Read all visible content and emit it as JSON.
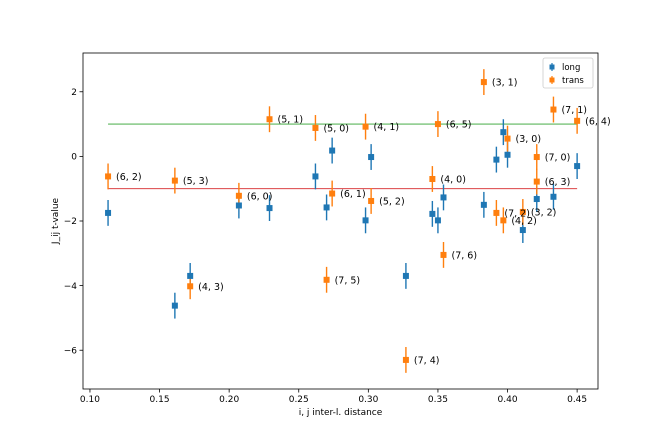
{
  "chart_data": {
    "type": "scatter",
    "title": "",
    "xlabel": "i, j inter-l. distance",
    "ylabel": "J_ij t-value",
    "xlim": [
      0.095,
      0.465
    ],
    "ylim": [
      -7.2,
      3.2
    ],
    "xticks": [
      "0.10",
      "0.15",
      "0.20",
      "0.25",
      "0.30",
      "0.35",
      "0.40",
      "0.45"
    ],
    "xtick_values": [
      0.1,
      0.15,
      0.2,
      0.25,
      0.3,
      0.35,
      0.4,
      0.45
    ],
    "yticks": [
      "−6",
      "−4",
      "−2",
      "0",
      "2"
    ],
    "ytick_values": [
      -6,
      -4,
      -2,
      0,
      2
    ],
    "grid": false,
    "legend_position": "top-right",
    "hlines": [
      {
        "y": 1.0,
        "color": "#2ca02c"
      },
      {
        "y": -1.0,
        "color": "#d62728"
      }
    ],
    "series": [
      {
        "name": "long",
        "color": "#1f77b4",
        "points": [
          {
            "x": 0.113,
            "y": -1.75,
            "err": 0.4
          },
          {
            "x": 0.161,
            "y": -4.62,
            "err": 0.4
          },
          {
            "x": 0.172,
            "y": -3.7,
            "err": 0.4
          },
          {
            "x": 0.207,
            "y": -1.52,
            "err": 0.4
          },
          {
            "x": 0.229,
            "y": -1.6,
            "err": 0.4
          },
          {
            "x": 0.262,
            "y": -0.62,
            "err": 0.4
          },
          {
            "x": 0.27,
            "y": -1.58,
            "err": 0.4
          },
          {
            "x": 0.274,
            "y": 0.18,
            "err": 0.4
          },
          {
            "x": 0.298,
            "y": -1.98,
            "err": 0.4
          },
          {
            "x": 0.302,
            "y": -0.02,
            "err": 0.4
          },
          {
            "x": 0.327,
            "y": -3.7,
            "err": 0.4
          },
          {
            "x": 0.346,
            "y": -1.78,
            "err": 0.4
          },
          {
            "x": 0.35,
            "y": -1.98,
            "err": 0.4
          },
          {
            "x": 0.354,
            "y": -1.27,
            "err": 0.4
          },
          {
            "x": 0.383,
            "y": -1.5,
            "err": 0.4
          },
          {
            "x": 0.392,
            "y": -0.1,
            "err": 0.4
          },
          {
            "x": 0.397,
            "y": 0.75,
            "err": 0.4
          },
          {
            "x": 0.4,
            "y": 0.05,
            "err": 0.4
          },
          {
            "x": 0.411,
            "y": -2.28,
            "err": 0.4
          },
          {
            "x": 0.421,
            "y": -1.32,
            "err": 0.4
          },
          {
            "x": 0.433,
            "y": -1.25,
            "err": 0.4
          },
          {
            "x": 0.45,
            "y": -0.3,
            "err": 0.4
          }
        ]
      },
      {
        "name": "trans",
        "color": "#ff7f0e",
        "points": [
          {
            "x": 0.113,
            "y": -0.62,
            "err": 0.4,
            "label": "(6, 2)"
          },
          {
            "x": 0.161,
            "y": -0.75,
            "err": 0.4,
            "label": "(5, 3)"
          },
          {
            "x": 0.172,
            "y": -4.02,
            "err": 0.4,
            "label": "(4, 3)"
          },
          {
            "x": 0.207,
            "y": -1.22,
            "err": 0.4,
            "label": "(6, 0)"
          },
          {
            "x": 0.229,
            "y": 1.15,
            "err": 0.4,
            "label": "(5, 1)"
          },
          {
            "x": 0.262,
            "y": 0.88,
            "err": 0.4,
            "label": "(5, 0)"
          },
          {
            "x": 0.27,
            "y": -3.82,
            "err": 0.4,
            "label": "(7, 5)"
          },
          {
            "x": 0.274,
            "y": -1.15,
            "err": 0.4,
            "label": "(6, 1)"
          },
          {
            "x": 0.298,
            "y": 0.92,
            "err": 0.4,
            "label": "(4, 1)"
          },
          {
            "x": 0.302,
            "y": -1.38,
            "err": 0.4,
            "label": "(5, 2)"
          },
          {
            "x": 0.327,
            "y": -6.3,
            "err": 0.4,
            "label": "(7, 4)"
          },
          {
            "x": 0.346,
            "y": -0.7,
            "err": 0.4,
            "label": "(4, 0)"
          },
          {
            "x": 0.35,
            "y": 1.0,
            "err": 0.4,
            "label": "(6, 5)"
          },
          {
            "x": 0.354,
            "y": -3.05,
            "err": 0.4,
            "label": "(7, 6)"
          },
          {
            "x": 0.383,
            "y": 2.3,
            "err": 0.4,
            "label": "(3, 1)"
          },
          {
            "x": 0.392,
            "y": -1.75,
            "err": 0.4,
            "label": "(7, 2)"
          },
          {
            "x": 0.397,
            "y": -1.98,
            "err": 0.4,
            "label": "(4, 2)"
          },
          {
            "x": 0.4,
            "y": 0.55,
            "err": 0.4,
            "label": "(3, 0)"
          },
          {
            "x": 0.411,
            "y": -1.72,
            "err": 0.4,
            "label": "(3, 2)"
          },
          {
            "x": 0.421,
            "y": -0.02,
            "err": 0.4,
            "label": "(7, 0)"
          },
          {
            "x": 0.421,
            "y": -0.78,
            "err": 0.4,
            "label": "(6, 3)"
          },
          {
            "x": 0.433,
            "y": 1.45,
            "err": 0.4,
            "label": "(7, 1)"
          },
          {
            "x": 0.45,
            "y": 1.1,
            "err": 0.4,
            "label": "(6, 4)"
          }
        ]
      }
    ]
  }
}
